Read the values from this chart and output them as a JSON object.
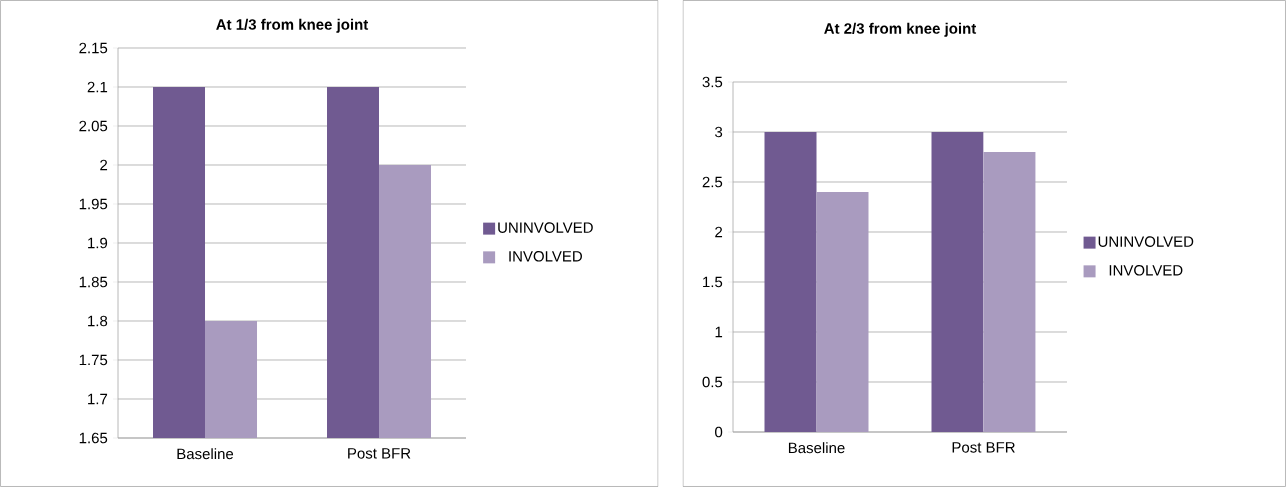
{
  "chart_data": [
    {
      "type": "bar",
      "title": "**At 1/3 from knee joint**",
      "categories": [
        "Baseline",
        "Post BFR"
      ],
      "series": [
        {
          "name": "UNINVOLVED",
          "color": "#705a91",
          "values": [
            2.1,
            2.1
          ]
        },
        {
          "name": "INVOLVED",
          "color": "#a99bbf",
          "values": [
            1.8,
            2.0
          ]
        }
      ],
      "ylim": [
        1.65,
        2.15
      ],
      "yticks": [
        1.65,
        1.7,
        1.75,
        1.8,
        1.85,
        1.9,
        1.95,
        2,
        2.05,
        2.1,
        2.15
      ],
      "grid": "y",
      "legend": "right"
    },
    {
      "type": "bar",
      "title": "**At 2/3 from knee joint**",
      "categories": [
        "Baseline",
        "Post BFR"
      ],
      "series": [
        {
          "name": "UNINVOLVED",
          "color": "#705a91",
          "values": [
            3,
            3
          ]
        },
        {
          "name": "INVOLVED",
          "color": "#a99bbf",
          "values": [
            2.4,
            2.8
          ]
        }
      ],
      "ylim": [
        0,
        3.5
      ],
      "yticks": [
        0,
        0.5,
        1,
        1.5,
        2,
        2.5,
        3,
        3.5
      ],
      "grid": "y",
      "legend": "right"
    }
  ]
}
